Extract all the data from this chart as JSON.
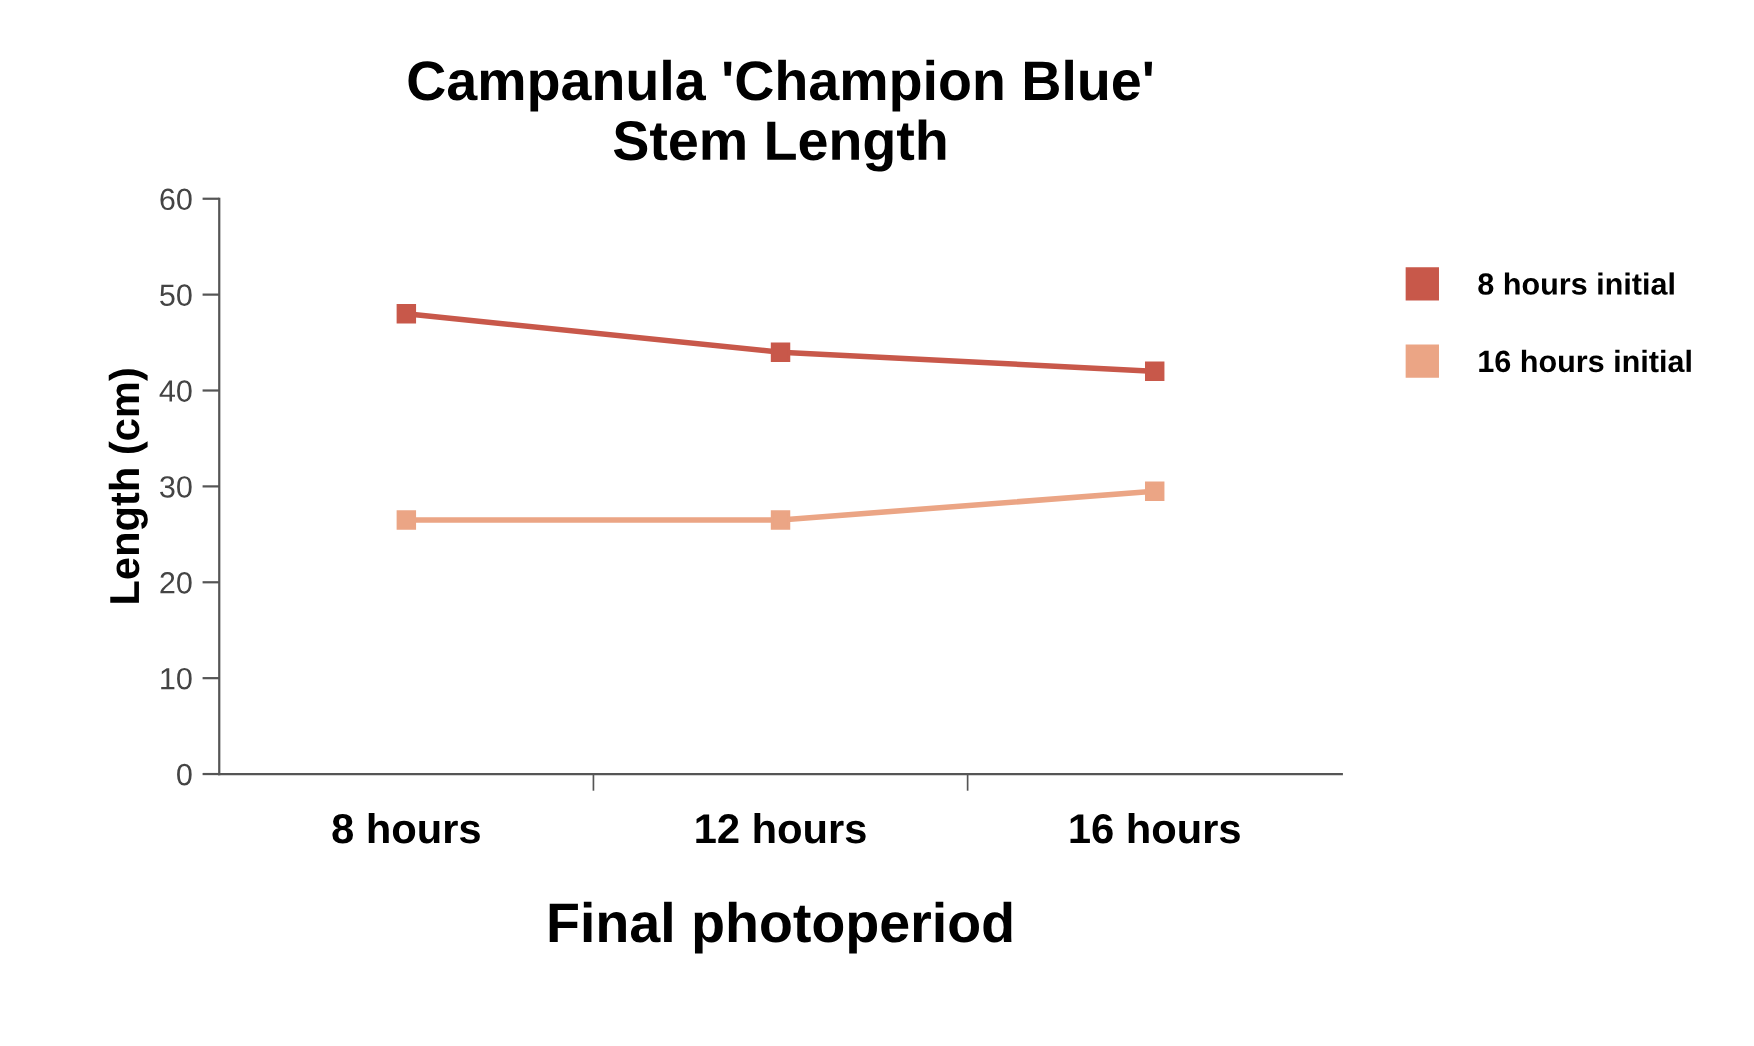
{
  "chart_data": {
    "type": "line",
    "title": "Campanula 'Champion Blue'\nStem Length",
    "xlabel": "Final photoperiod",
    "ylabel": "Length (cm)",
    "categories": [
      "8 hours",
      "12 hours",
      "16 hours"
    ],
    "series": [
      {
        "name": "8 hours initial",
        "color": "#c8584a",
        "values": [
          48,
          44,
          42
        ]
      },
      {
        "name": "16 hours initial",
        "color": "#eba585",
        "values": [
          26.5,
          26.5,
          29.5
        ]
      }
    ],
    "ylim": [
      0,
      60
    ],
    "yticks": [
      0,
      10,
      20,
      30,
      40,
      50,
      60
    ],
    "grid": false,
    "legend": "right",
    "marker": "square",
    "line_style": "solid"
  }
}
